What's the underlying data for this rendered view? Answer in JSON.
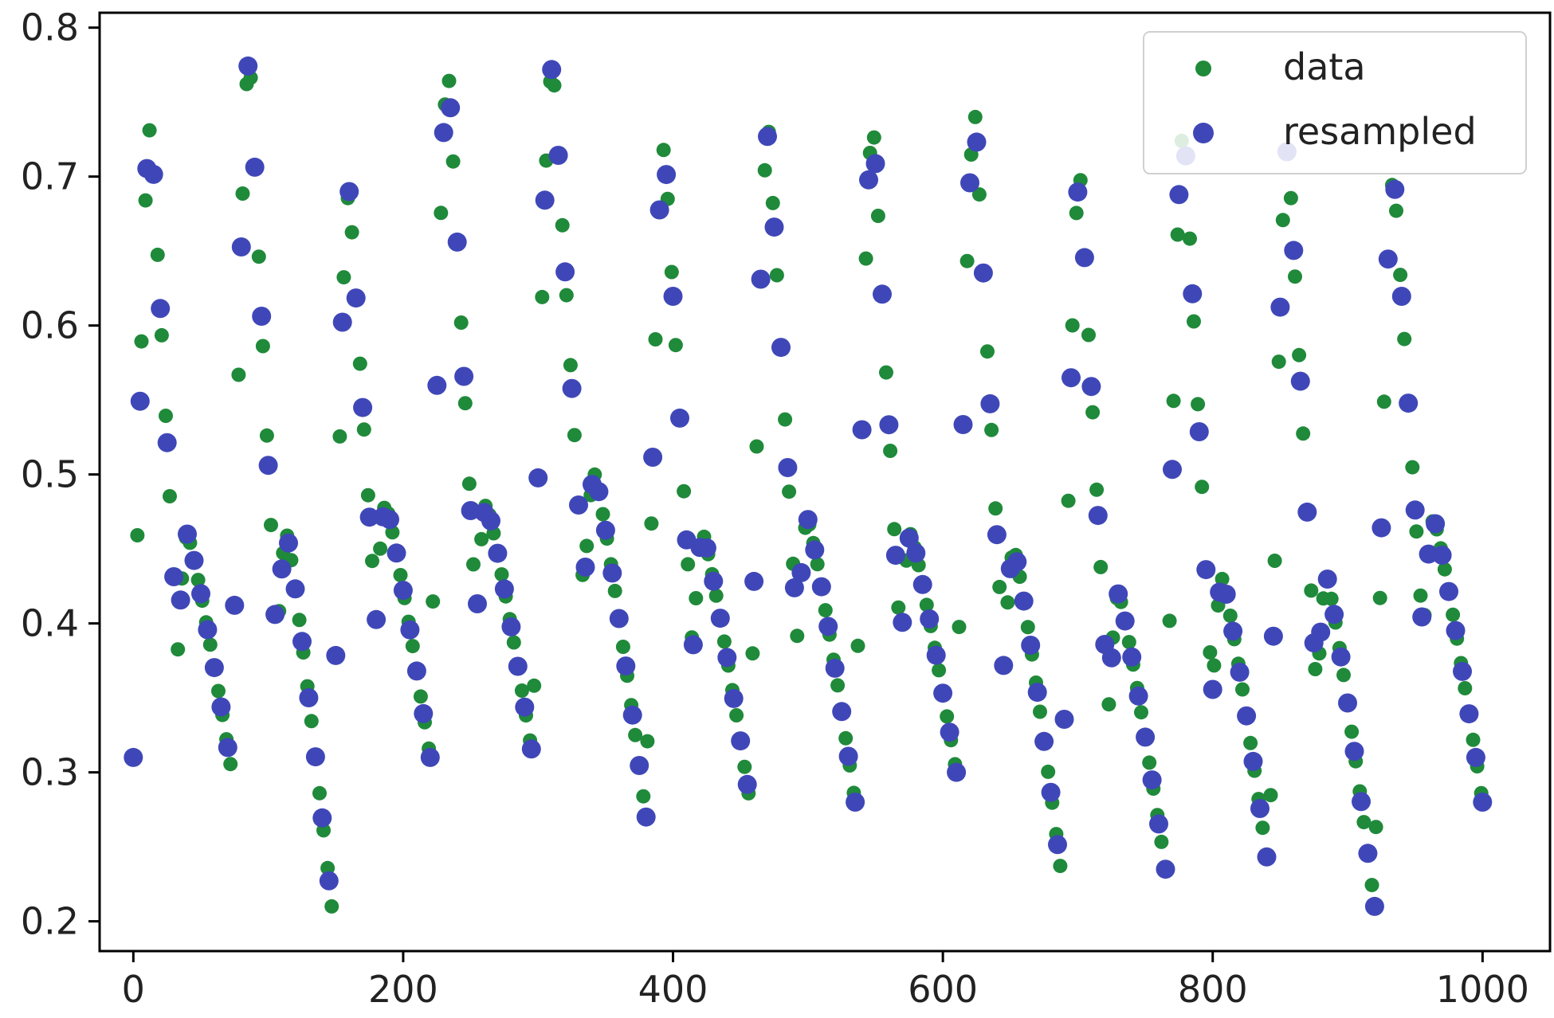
{
  "chart_data": {
    "type": "scatter",
    "xlim": [
      -25,
      1050
    ],
    "ylim": [
      0.18,
      0.81
    ],
    "xticks": [
      0,
      200,
      400,
      600,
      800,
      1000
    ],
    "xtick_labels": [
      "0",
      "200",
      "400",
      "600",
      "800",
      "1000"
    ],
    "yticks": [
      0.2,
      0.3,
      0.4,
      0.5,
      0.6,
      0.7,
      0.8
    ],
    "ytick_labels": [
      "0.2",
      "0.3",
      "0.4",
      "0.5",
      "0.6",
      "0.7",
      "0.8"
    ],
    "grid": false,
    "legend_position": "top-right",
    "title": "",
    "xlabel": "",
    "ylabel": "",
    "cycles": [
      {
        "start": 0,
        "base": 0.31,
        "peak": 0.735,
        "mid": 0.46,
        "trough": 0.3
      },
      {
        "start": 73,
        "base": 0.3,
        "peak": 0.78,
        "mid": 0.46,
        "trough": 0.21
      },
      {
        "start": 147,
        "base": 0.21,
        "peak": 0.69,
        "mid": 0.48,
        "trough": 0.31
      },
      {
        "start": 220,
        "base": 0.31,
        "peak": 0.77,
        "mid": 0.48,
        "trough": 0.31
      },
      {
        "start": 296,
        "base": 0.31,
        "peak": 0.775,
        "mid": 0.5,
        "trough": 0.27
      },
      {
        "start": 380,
        "base": 0.27,
        "peak": 0.72,
        "mid": 0.46,
        "trough": 0.28
      },
      {
        "start": 457,
        "base": 0.28,
        "peak": 0.73,
        "mid": 0.47,
        "trough": 0.28
      },
      {
        "start": 535,
        "base": 0.28,
        "peak": 0.735,
        "mid": 0.46,
        "trough": 0.3
      },
      {
        "start": 610,
        "base": 0.3,
        "peak": 0.74,
        "mid": 0.45,
        "trough": 0.23
      },
      {
        "start": 688,
        "base": 0.23,
        "peak": 0.7,
        "mid": 0.42,
        "trough": 0.235
      },
      {
        "start": 765,
        "base": 0.235,
        "peak": 0.735,
        "mid": 0.43,
        "trough": 0.23
      },
      {
        "start": 842,
        "base": 0.23,
        "peak": 0.72,
        "mid": 0.43,
        "trough": 0.21
      },
      {
        "start": 920,
        "base": 0.21,
        "peak": 0.7,
        "mid": 0.47,
        "trough": 0.28
      }
    ],
    "end_x": 1000,
    "data_step": 3,
    "resampled_step": 5,
    "series": [
      {
        "name": "data",
        "color": "#1f8a3a",
        "marker": "circle-small"
      },
      {
        "name": "resampled",
        "color": "#3f47b8",
        "marker": "circle-large"
      }
    ]
  }
}
